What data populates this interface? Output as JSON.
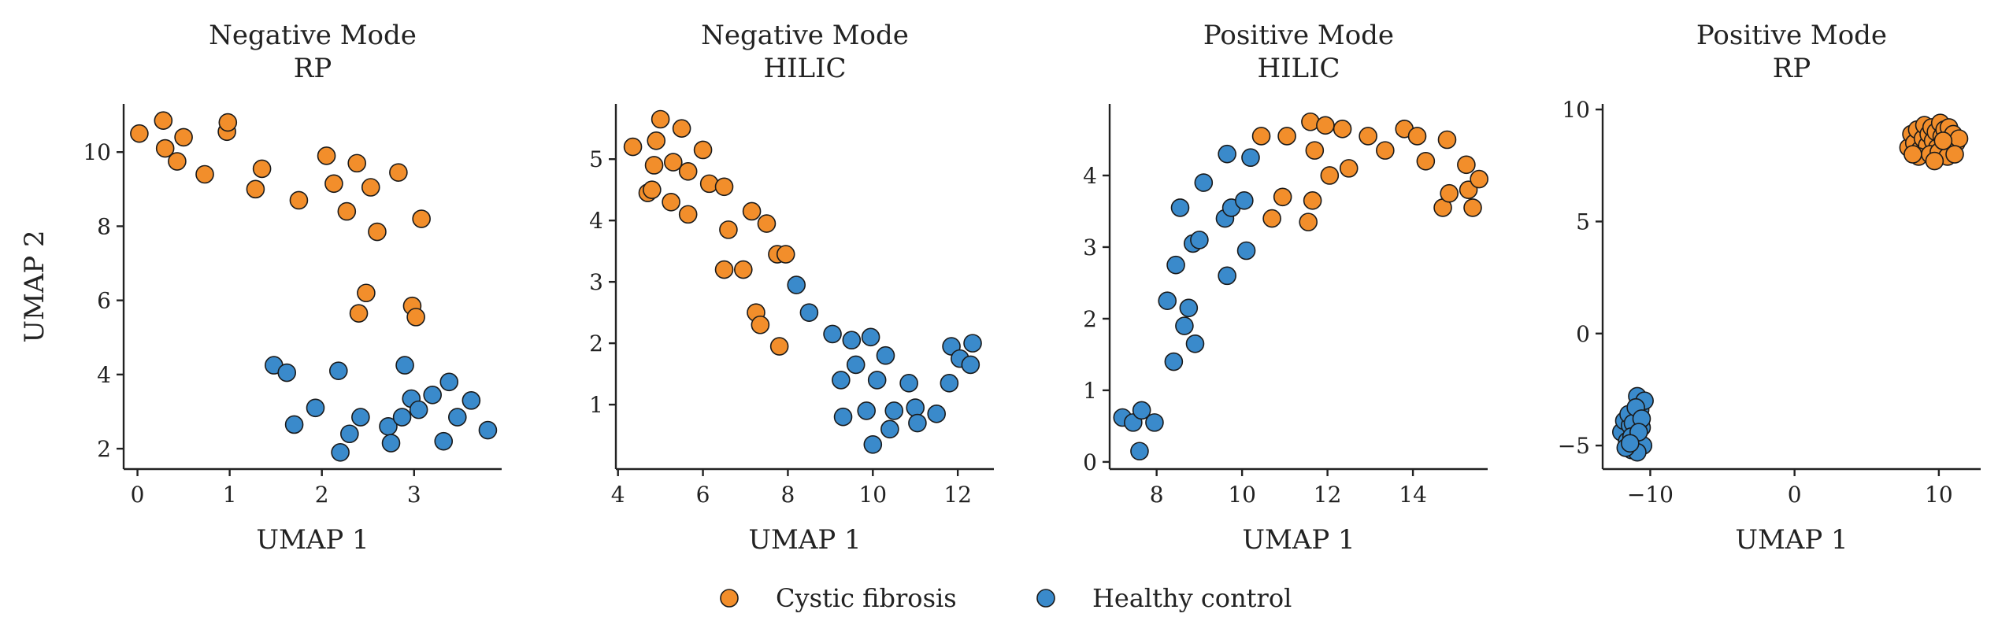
{
  "colors": {
    "cf": "#F28E2B",
    "hc": "#3A8ACB"
  },
  "legend": [
    {
      "key": "cf",
      "label": "Cystic fibrosis"
    },
    {
      "key": "hc",
      "label": "Healthy control"
    }
  ],
  "chart_data": [
    {
      "type": "scatter",
      "title": [
        "Negative Mode",
        "RP"
      ],
      "xlabel": "UMAP 1",
      "ylabel": "UMAP 2",
      "xlim": [
        -0.15,
        3.95
      ],
      "ylim": [
        1.45,
        11.3
      ],
      "xticks": [
        0,
        1,
        2,
        3
      ],
      "yticks": [
        2,
        4,
        6,
        8,
        10
      ],
      "series": [
        {
          "name": "Cystic fibrosis",
          "color_key": "cf",
          "x": [
            0.02,
            0.28,
            0.3,
            0.43,
            0.5,
            0.73,
            0.97,
            0.98,
            1.28,
            1.35,
            1.75,
            2.05,
            2.13,
            2.27,
            2.38,
            2.4,
            2.48,
            2.53,
            2.6,
            2.83,
            2.98,
            3.02,
            3.08
          ],
          "y": [
            10.5,
            10.85,
            10.1,
            9.75,
            10.4,
            9.4,
            10.55,
            10.8,
            9.0,
            9.55,
            8.7,
            9.9,
            9.15,
            8.4,
            9.7,
            5.65,
            6.2,
            9.05,
            7.85,
            9.45,
            5.85,
            5.55,
            8.2
          ]
        },
        {
          "name": "Healthy control",
          "color_key": "hc",
          "x": [
            1.48,
            1.62,
            1.7,
            1.93,
            2.18,
            2.2,
            2.3,
            2.42,
            2.72,
            2.75,
            2.87,
            2.9,
            2.97,
            3.2,
            3.32,
            3.38,
            3.47,
            3.62,
            3.8,
            3.05
          ],
          "y": [
            4.25,
            4.05,
            2.65,
            3.1,
            4.1,
            1.9,
            2.4,
            2.85,
            2.6,
            2.15,
            2.85,
            4.25,
            3.35,
            3.45,
            2.2,
            3.8,
            2.85,
            3.3,
            2.5,
            3.05
          ]
        }
      ]
    },
    {
      "type": "scatter",
      "title": [
        "Negative Mode",
        "HILIC"
      ],
      "xlabel": "UMAP 1",
      "ylabel": "",
      "xlim": [
        3.95,
        12.85
      ],
      "ylim": [
        -0.05,
        5.9
      ],
      "xticks": [
        4,
        6,
        8,
        10,
        12
      ],
      "yticks": [
        1,
        2,
        3,
        4,
        5
      ],
      "series": [
        {
          "name": "Cystic fibrosis",
          "color_key": "cf",
          "x": [
            4.35,
            4.7,
            4.8,
            4.85,
            4.9,
            5.0,
            5.25,
            5.3,
            5.5,
            5.65,
            5.65,
            6.0,
            6.15,
            6.5,
            6.5,
            6.6,
            6.95,
            7.15,
            7.25,
            7.35,
            7.5,
            7.75,
            7.8,
            7.95
          ],
          "y": [
            5.2,
            4.45,
            4.5,
            4.9,
            5.3,
            5.65,
            4.3,
            4.95,
            5.5,
            4.8,
            4.1,
            5.15,
            4.6,
            4.55,
            3.2,
            3.85,
            3.2,
            4.15,
            2.5,
            2.3,
            3.95,
            3.45,
            1.95,
            3.45
          ]
        },
        {
          "name": "Healthy control",
          "color_key": "hc",
          "x": [
            8.2,
            8.5,
            9.05,
            9.25,
            9.3,
            9.5,
            9.6,
            9.85,
            9.95,
            10.0,
            10.1,
            10.3,
            10.4,
            10.5,
            10.85,
            11.0,
            11.05,
            11.5,
            11.8,
            11.85,
            12.05,
            12.3,
            12.35
          ],
          "y": [
            2.95,
            2.5,
            2.15,
            1.4,
            0.8,
            2.05,
            1.65,
            0.9,
            2.1,
            0.35,
            1.4,
            1.8,
            0.6,
            0.9,
            1.35,
            0.95,
            0.7,
            0.85,
            1.35,
            1.95,
            1.75,
            1.65,
            2.0
          ]
        }
      ]
    },
    {
      "type": "scatter",
      "title": [
        "Positive Mode",
        "HILIC"
      ],
      "xlabel": "UMAP 1",
      "ylabel": "",
      "xlim": [
        6.9,
        15.75
      ],
      "ylim": [
        -0.1,
        5.0
      ],
      "xticks": [
        8,
        10,
        12,
        14
      ],
      "yticks": [
        0,
        1,
        2,
        3,
        4
      ],
      "series": [
        {
          "name": "Cystic fibrosis",
          "color_key": "cf",
          "x": [
            10.45,
            10.7,
            10.95,
            11.05,
            11.55,
            11.6,
            11.65,
            11.7,
            11.95,
            12.05,
            12.35,
            12.5,
            12.95,
            13.35,
            13.8,
            14.1,
            14.3,
            14.7,
            14.8,
            14.85,
            15.25,
            15.3,
            15.4,
            15.55
          ],
          "y": [
            4.55,
            3.4,
            3.7,
            4.55,
            3.35,
            4.75,
            3.65,
            4.35,
            4.7,
            4.0,
            4.65,
            4.1,
            4.55,
            4.35,
            4.65,
            4.55,
            4.2,
            3.55,
            4.5,
            3.75,
            4.15,
            3.8,
            3.55,
            3.95
          ]
        },
        {
          "name": "Healthy control",
          "color_key": "hc",
          "x": [
            7.2,
            7.45,
            7.6,
            7.65,
            7.95,
            8.25,
            8.4,
            8.45,
            8.55,
            8.65,
            8.75,
            8.85,
            8.9,
            9.0,
            9.1,
            9.6,
            9.65,
            9.65,
            9.75,
            10.05,
            10.1,
            10.2
          ],
          "y": [
            0.62,
            0.55,
            0.15,
            0.72,
            0.55,
            2.25,
            1.4,
            2.75,
            3.55,
            1.9,
            2.15,
            3.05,
            1.65,
            3.1,
            3.9,
            3.4,
            2.6,
            4.3,
            3.55,
            3.65,
            2.95,
            4.25
          ]
        }
      ]
    },
    {
      "type": "scatter",
      "title": [
        "Positive Mode",
        "RP"
      ],
      "xlabel": "UMAP 1",
      "ylabel": "",
      "xlim": [
        -13.3,
        12.9
      ],
      "ylim": [
        -6.05,
        10.25
      ],
      "xticks": [
        -10,
        0,
        10
      ],
      "yticks": [
        -5,
        0,
        5,
        10
      ],
      "series": [
        {
          "name": "Cystic fibrosis",
          "color_key": "cf",
          "x": [
            7.9,
            8.1,
            8.3,
            8.5,
            8.7,
            8.9,
            9.0,
            9.2,
            9.3,
            9.5,
            9.6,
            9.8,
            9.9,
            10.1,
            10.2,
            10.4,
            10.5,
            10.7,
            10.8,
            11.0,
            11.2,
            11.4,
            8.6,
            9.4,
            10.0,
            10.6,
            11.1,
            9.7,
            10.3,
            8.2
          ],
          "y": [
            8.3,
            8.9,
            8.5,
            9.1,
            8.2,
            8.7,
            9.3,
            8.4,
            8.9,
            9.2,
            8.6,
            9.0,
            8.3,
            9.4,
            8.8,
            9.1,
            8.4,
            9.2,
            8.7,
            8.9,
            8.5,
            8.7,
            7.9,
            8.0,
            8.1,
            7.9,
            8.0,
            7.7,
            8.6,
            8.0
          ]
        },
        {
          "name": "Healthy control",
          "color_key": "hc",
          "x": [
            -12.0,
            -11.8,
            -11.6,
            -11.4,
            -11.3,
            -11.1,
            -11.0,
            -10.9,
            -10.8,
            -10.7,
            -10.6,
            -10.5,
            -10.4,
            -11.5,
            -11.2,
            -10.9,
            -11.7,
            -11.0,
            -10.6,
            -11.3,
            -10.8,
            -11.4
          ],
          "y": [
            -4.4,
            -3.9,
            -4.8,
            -4.1,
            -5.2,
            -3.6,
            -4.5,
            -2.8,
            -4.9,
            -3.4,
            -4.2,
            -5.0,
            -3.0,
            -3.6,
            -4.0,
            -5.3,
            -5.1,
            -3.3,
            -3.8,
            -4.6,
            -4.4,
            -4.9
          ]
        }
      ]
    }
  ]
}
